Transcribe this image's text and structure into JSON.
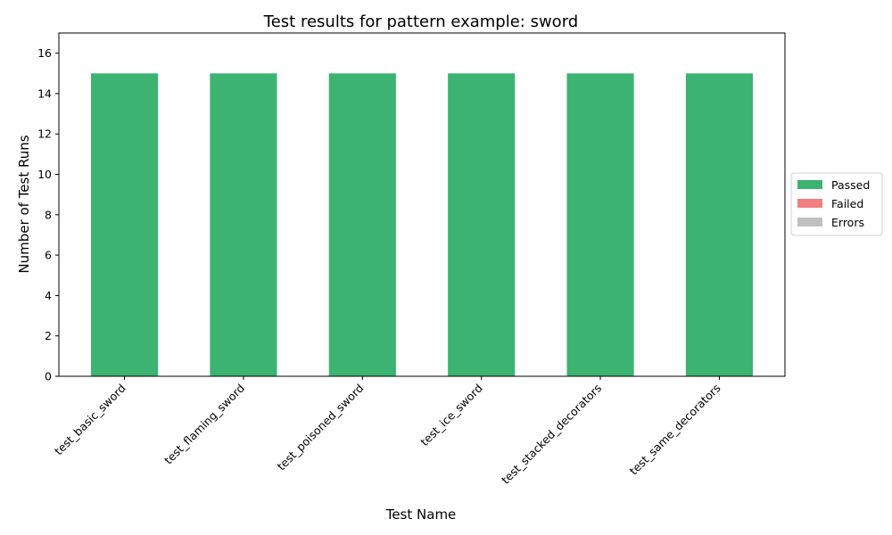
{
  "chart_data": {
    "type": "bar",
    "stacked": true,
    "title": "Test results for pattern example: sword",
    "xlabel": "Test Name",
    "ylabel": "Number of Test Runs",
    "ylim": [
      0,
      17
    ],
    "yticks": [
      0,
      2,
      4,
      6,
      8,
      10,
      12,
      14,
      16
    ],
    "grid": false,
    "legend_position": "right",
    "categories": [
      "test_basic_sword",
      "test_flaming_sword",
      "test_poisoned_sword",
      "test_ice_sword",
      "test_stacked_decorators",
      "test_same_decorators"
    ],
    "series": [
      {
        "name": "Passed",
        "color": "#3cb371",
        "values": [
          15,
          15,
          15,
          15,
          15,
          15
        ]
      },
      {
        "name": "Failed",
        "color": "#f08080",
        "values": [
          0,
          0,
          0,
          0,
          0,
          0
        ]
      },
      {
        "name": "Errors",
        "color": "#c0c0c0",
        "values": [
          0,
          0,
          0,
          0,
          0,
          0
        ]
      }
    ]
  }
}
